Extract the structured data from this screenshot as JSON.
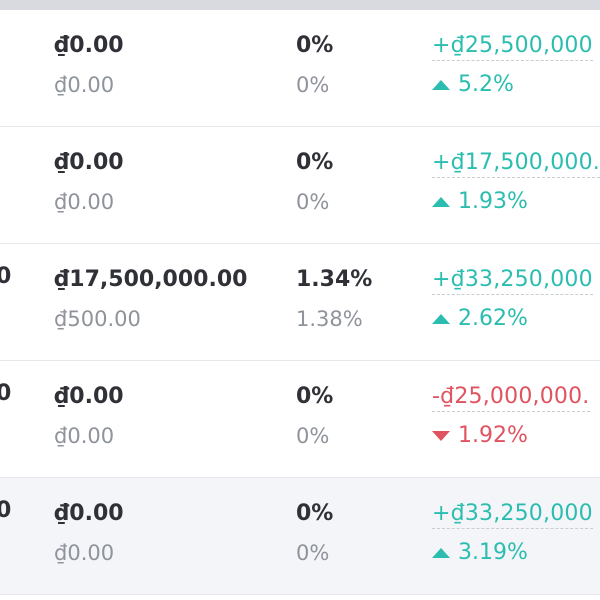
{
  "colors": {
    "positive": "#2bbdb0",
    "negative": "#e05360",
    "primary_text": "#2f3137",
    "secondary_text": "#8f939b"
  },
  "rows": [
    {
      "lead": "",
      "amount": "₫0.00",
      "amount_sub": "₫0.00",
      "pct": "0%",
      "pct_sub": "0%",
      "change": "+₫25,500,000",
      "change_pct": "5.2%",
      "direction": "up",
      "highlight": false
    },
    {
      "lead": "",
      "amount": "₫0.00",
      "amount_sub": "₫0.00",
      "pct": "0%",
      "pct_sub": "0%",
      "change": "+₫17,500,000.",
      "change_pct": "1.93%",
      "direction": "up",
      "highlight": false
    },
    {
      "lead": "0",
      "amount": "₫17,500,000.00",
      "amount_sub": "₫500.00",
      "pct": "1.34%",
      "pct_sub": "1.38%",
      "change": "+₫33,250,000",
      "change_pct": "2.62%",
      "direction": "up",
      "highlight": false
    },
    {
      "lead": "0",
      "amount": "₫0.00",
      "amount_sub": "₫0.00",
      "pct": "0%",
      "pct_sub": "0%",
      "change": "-₫25,000,000.",
      "change_pct": "1.92%",
      "direction": "down",
      "highlight": false
    },
    {
      "lead": "0",
      "amount": "₫0.00",
      "amount_sub": "₫0.00",
      "pct": "0%",
      "pct_sub": "0%",
      "change": "+₫33,250,000",
      "change_pct": "3.19%",
      "direction": "up",
      "highlight": true
    }
  ]
}
